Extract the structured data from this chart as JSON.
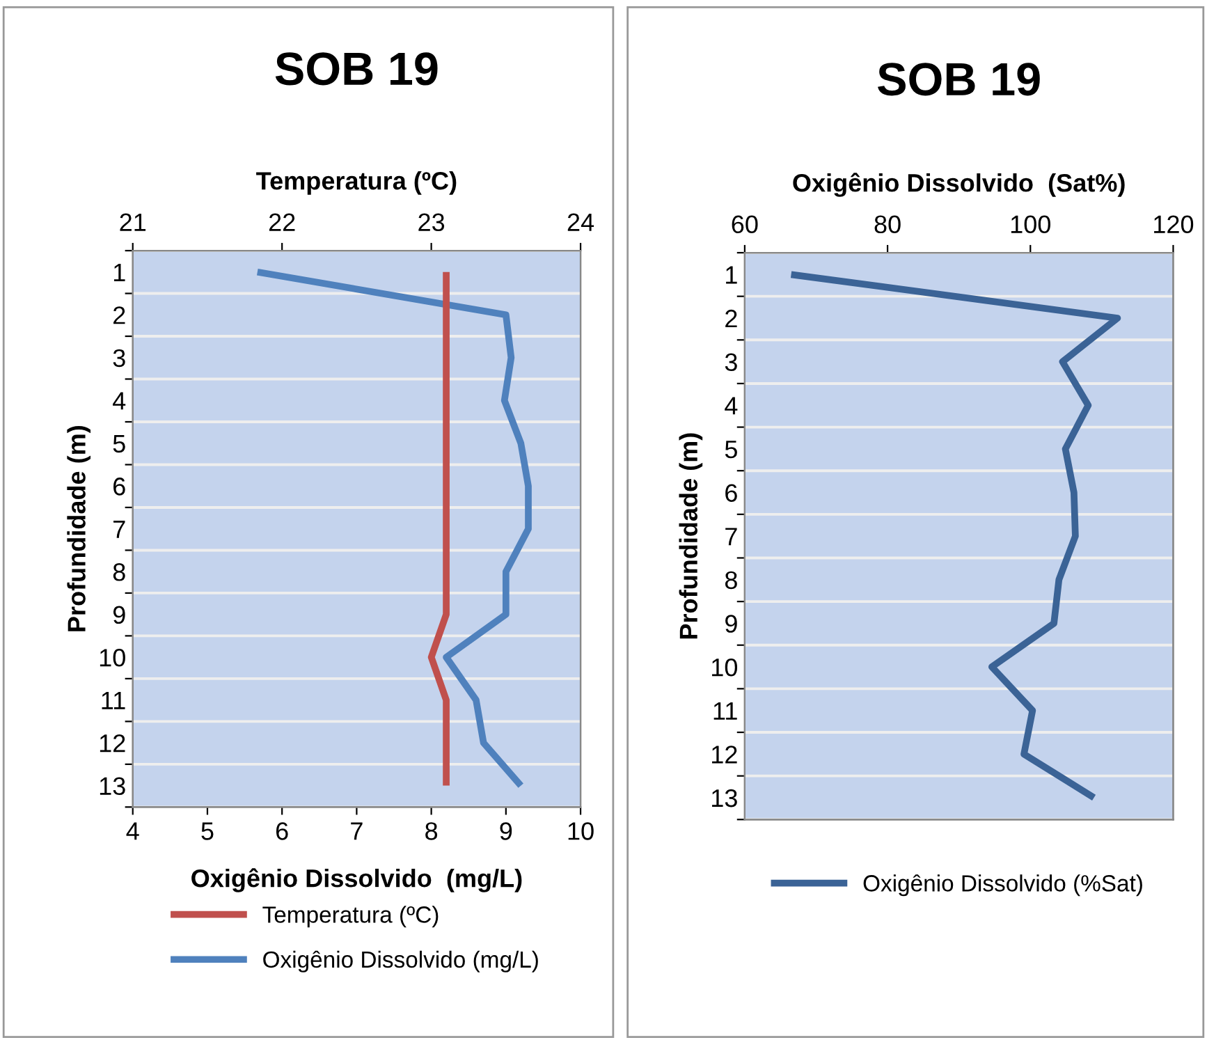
{
  "chart_data": [
    {
      "type": "line",
      "orientation": "horizontal",
      "title": "SOB 19",
      "ylabel": "Profundidade (m)",
      "xlabel": "Oxigênio Dissolvido  (mg/L)",
      "x2label": "Temperatura (ºC)",
      "categories": [
        "1",
        "2",
        "3",
        "4",
        "5",
        "6",
        "7",
        "8",
        "9",
        "10",
        "11",
        "12",
        "13"
      ],
      "xlim": [
        4,
        10
      ],
      "xticks": [
        4,
        5,
        6,
        7,
        8,
        9,
        10
      ],
      "x2lim": [
        21,
        24
      ],
      "x2ticks": [
        21,
        22,
        23,
        24
      ],
      "series": [
        {
          "name": "Temperatura (ºC)",
          "color": "#c0504d",
          "axis": "x2",
          "values": [
            23.1,
            23.1,
            23.1,
            23.1,
            23.1,
            23.1,
            23.1,
            23.1,
            23.1,
            23.0,
            23.1,
            23.1,
            23.1
          ]
        },
        {
          "name": "Oxigênio Dissolvido (mg/L)",
          "color": "#4f81bd",
          "values": [
            5.67,
            9.0,
            9.07,
            8.98,
            9.2,
            9.3,
            9.3,
            9.0,
            9.0,
            8.2,
            8.6,
            8.7,
            9.2
          ]
        }
      ],
      "grid": "y",
      "legend": "bottom",
      "marker": "none",
      "line_style": "solid"
    },
    {
      "type": "line",
      "orientation": "horizontal",
      "title": "SOB 19",
      "ylabel": "Profundidade (m)",
      "x2label": "Oxigênio Dissolvido  (Sat%)",
      "categories": [
        "1",
        "2",
        "3",
        "4",
        "5",
        "6",
        "7",
        "8",
        "9",
        "10",
        "11",
        "12",
        "13"
      ],
      "x2lim": [
        60,
        120
      ],
      "x2ticks": [
        60,
        80,
        100,
        120
      ],
      "series": [
        {
          "name": "Oxigênio Dissolvido (%Sat)",
          "color": "#3b6396",
          "axis": "x2",
          "values": [
            66.5,
            112.2,
            104.5,
            108.1,
            104.9,
            106.1,
            106.3,
            104.0,
            103.3,
            94.6,
            100.3,
            99.1,
            108.9
          ]
        }
      ],
      "grid": "y",
      "legend": "bottom",
      "marker": "none",
      "line_style": "solid"
    }
  ]
}
